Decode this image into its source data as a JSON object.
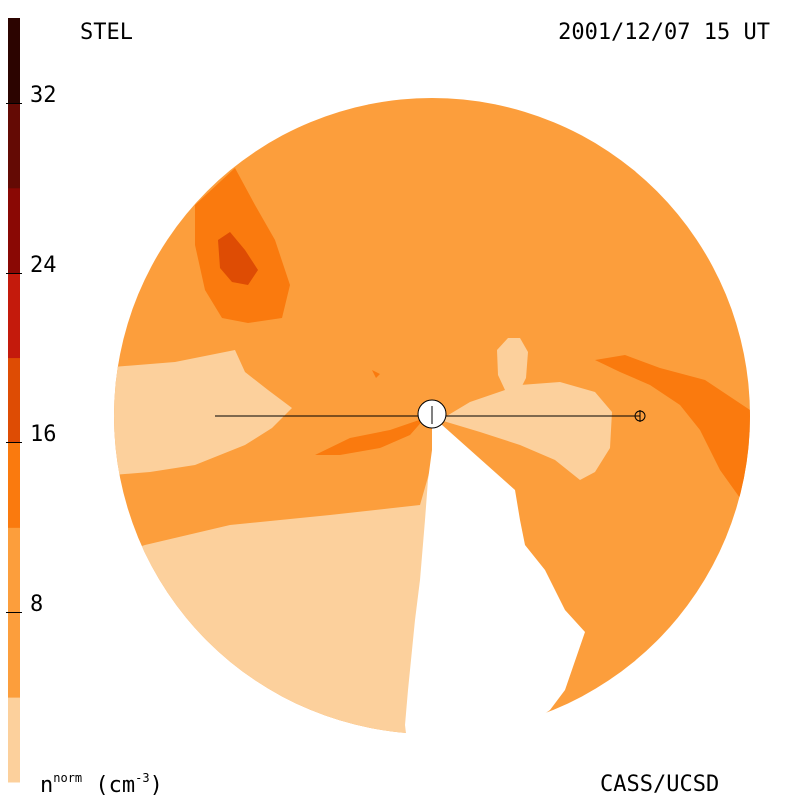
{
  "header": {
    "observatory": "STEL",
    "datetime": "2001/12/07 15 UT"
  },
  "footer": {
    "quantity": "n",
    "quantity_sup": "norm",
    "unit_open": "(cm",
    "unit_sup": "-3",
    "unit_close": ")",
    "credit": "CASS/UCSD"
  },
  "colorbar": {
    "ticks": [
      {
        "value": 32,
        "label": "32"
      },
      {
        "value": 24,
        "label": "24"
      },
      {
        "value": 16,
        "label": "16"
      },
      {
        "value": 8,
        "label": "8"
      }
    ],
    "range": [
      0,
      36
    ],
    "bands": [
      {
        "from": 0,
        "to": 4,
        "color": "#fcd09c"
      },
      {
        "from": 4,
        "to": 12,
        "color": "#fc9e3c"
      },
      {
        "from": 12,
        "to": 16,
        "color": "#fa7a0e"
      },
      {
        "from": 16,
        "to": 20,
        "color": "#de4c04"
      },
      {
        "from": 20,
        "to": 24,
        "color": "#c41a0c"
      },
      {
        "from": 24,
        "to": 28,
        "color": "#8a0804"
      },
      {
        "from": 28,
        "to": 32,
        "color": "#640a04"
      },
      {
        "from": 32,
        "to": 36,
        "color": "#2c0400"
      }
    ]
  },
  "colors": {
    "level_low": "#fcd09c",
    "level_mid": "#fc9e3c",
    "level_high": "#fa7a0e",
    "level_peak": "#de4c04",
    "background": "#ffffff",
    "line": "#000000"
  }
}
